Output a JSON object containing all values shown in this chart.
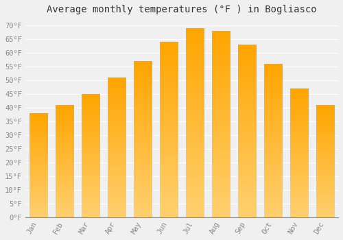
{
  "title": "Average monthly temperatures (°F ) in Bogliasco",
  "months": [
    "Jan",
    "Feb",
    "Mar",
    "Apr",
    "May",
    "Jun",
    "Jul",
    "Aug",
    "Sep",
    "Oct",
    "Nov",
    "Dec"
  ],
  "values": [
    38,
    41,
    45,
    51,
    57,
    64,
    69,
    68,
    63,
    56,
    47,
    41
  ],
  "bar_color_top": "#FFA500",
  "bar_color_bottom": "#FFD070",
  "background_color": "#F0F0F0",
  "grid_color": "#FFFFFF",
  "text_color": "#888888",
  "title_color": "#333333",
  "ylim": [
    0,
    72
  ],
  "yticks": [
    0,
    5,
    10,
    15,
    20,
    25,
    30,
    35,
    40,
    45,
    50,
    55,
    60,
    65,
    70
  ],
  "title_fontsize": 10,
  "tick_fontsize": 7.5,
  "bar_width": 0.7,
  "font_family": "monospace"
}
